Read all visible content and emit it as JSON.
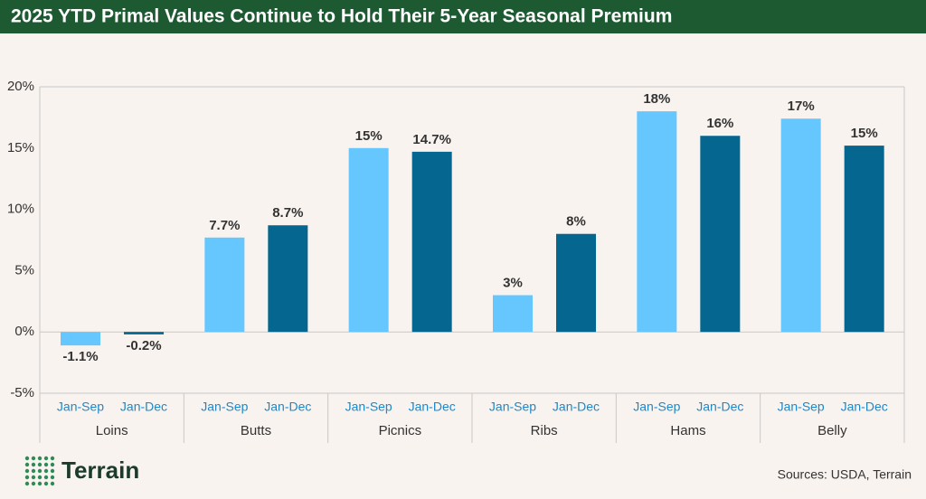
{
  "chart_data": {
    "type": "bar",
    "title": "2025 YTD Primal Values Continue to Hold Their 5-Year Seasonal Premium",
    "categories": [
      "Loins",
      "Butts",
      "Picnics",
      "Ribs",
      "Hams",
      "Belly"
    ],
    "series": [
      {
        "name": "Jan-Sep",
        "color": "#66c7ff",
        "values": [
          -1.1,
          7.7,
          15,
          3,
          18,
          17.4
        ],
        "value_labels": [
          "-1.1%",
          "7.7%",
          "15%",
          "3%",
          "18%",
          "17%"
        ]
      },
      {
        "name": "Jan-Dec",
        "color": "#05678f",
        "values": [
          -0.2,
          8.7,
          14.7,
          8,
          16,
          15.2
        ],
        "value_labels": [
          "-0.2%",
          "8.7%",
          "14.7%",
          "8%",
          "16%",
          "15%"
        ]
      }
    ],
    "ylim": [
      -5,
      20
    ],
    "yticks": [
      {
        "value": -5,
        "label": "-5%"
      },
      {
        "value": 0,
        "label": "0%"
      },
      {
        "value": 5,
        "label": "5%"
      },
      {
        "value": 10,
        "label": "10%"
      },
      {
        "value": 15,
        "label": "15%"
      },
      {
        "value": 20,
        "label": "20%"
      }
    ],
    "source": "Sources: USDA, Terrain",
    "logo": "Terrain"
  }
}
